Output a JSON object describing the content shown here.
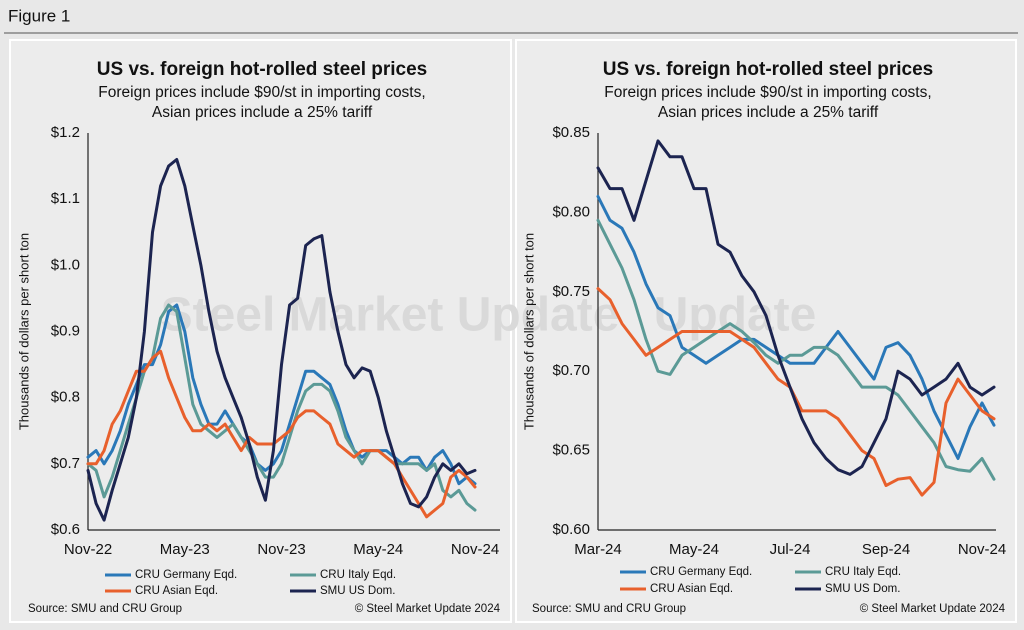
{
  "figure_label": "Figure 1",
  "chart_data": [
    {
      "type": "line",
      "title": "US vs. foreign hot-rolled steel prices",
      "subtitle": [
        "Foreign prices include $90/st in importing costs,",
        "Asian prices include a 25% tariff"
      ],
      "y_label": "Thousands of dollars per short ton",
      "watermark": "Steel Market Update",
      "categories": [
        "Nov-22",
        null,
        null,
        null,
        null,
        null,
        null,
        null,
        null,
        null,
        null,
        null,
        "May-23",
        null,
        null,
        null,
        null,
        null,
        null,
        null,
        null,
        null,
        null,
        null,
        "Nov-23",
        null,
        null,
        null,
        null,
        null,
        null,
        null,
        null,
        null,
        null,
        null,
        "May-24",
        null,
        null,
        null,
        null,
        null,
        null,
        null,
        null,
        null,
        null,
        null,
        "Nov-24"
      ],
      "ylim": [
        0.6,
        1.2
      ],
      "yticks": [
        {
          "value": 0.6,
          "label": "$0.6"
        },
        {
          "value": 0.7,
          "label": "$0.7"
        },
        {
          "value": 0.8,
          "label": "$0.8"
        },
        {
          "value": 0.9,
          "label": "$0.9"
        },
        {
          "value": 1.0,
          "label": "$1.0"
        },
        {
          "value": 1.1,
          "label": "$1.1"
        },
        {
          "value": 1.2,
          "label": "$1.2"
        }
      ],
      "series": [
        {
          "name": "CRU Germany Eqd.",
          "color": "#2a78b8",
          "values": [
            0.71,
            0.72,
            0.7,
            0.72,
            0.75,
            0.79,
            0.82,
            0.85,
            0.85,
            0.88,
            0.93,
            0.94,
            0.9,
            0.83,
            0.79,
            0.76,
            0.76,
            0.78,
            0.76,
            0.74,
            0.73,
            0.7,
            0.69,
            0.7,
            0.72,
            0.76,
            0.8,
            0.84,
            0.84,
            0.83,
            0.82,
            0.79,
            0.75,
            0.72,
            0.71,
            0.72,
            0.72,
            0.72,
            0.71,
            0.7,
            0.71,
            0.71,
            0.69,
            0.71,
            0.72,
            0.7,
            0.67,
            0.68,
            0.67
          ]
        },
        {
          "name": "CRU Italy Eqd.",
          "color": "#5b9a96",
          "values": [
            0.7,
            0.69,
            0.65,
            0.68,
            0.72,
            0.76,
            0.8,
            0.84,
            0.86,
            0.92,
            0.94,
            0.93,
            0.86,
            0.79,
            0.76,
            0.75,
            0.74,
            0.75,
            0.76,
            0.74,
            0.72,
            0.7,
            0.68,
            0.68,
            0.7,
            0.74,
            0.78,
            0.81,
            0.82,
            0.82,
            0.81,
            0.78,
            0.74,
            0.72,
            0.7,
            0.72,
            0.72,
            0.71,
            0.7,
            0.7,
            0.7,
            0.7,
            0.69,
            0.7,
            0.66,
            0.65,
            0.66,
            0.64,
            0.63
          ]
        },
        {
          "name": "CRU Asian Eqd.",
          "color": "#e8602c",
          "values": [
            0.7,
            0.7,
            0.72,
            0.76,
            0.78,
            0.81,
            0.84,
            0.84,
            0.86,
            0.87,
            0.83,
            0.8,
            0.77,
            0.75,
            0.75,
            0.76,
            0.75,
            0.76,
            0.74,
            0.72,
            0.74,
            0.73,
            0.73,
            0.73,
            0.74,
            0.75,
            0.77,
            0.78,
            0.78,
            0.77,
            0.76,
            0.73,
            0.72,
            0.71,
            0.72,
            0.72,
            0.72,
            0.71,
            0.7,
            0.68,
            0.66,
            0.64,
            0.62,
            0.63,
            0.64,
            0.68,
            0.69,
            0.68,
            0.665
          ]
        },
        {
          "name": "SMU US Dom.",
          "color": "#1c2450",
          "values": [
            0.69,
            0.64,
            0.615,
            0.66,
            0.7,
            0.74,
            0.8,
            0.9,
            1.05,
            1.12,
            1.15,
            1.16,
            1.12,
            1.06,
            1.0,
            0.93,
            0.87,
            0.83,
            0.8,
            0.77,
            0.73,
            0.68,
            0.645,
            0.72,
            0.85,
            0.94,
            0.95,
            1.03,
            1.04,
            1.045,
            0.96,
            0.9,
            0.85,
            0.83,
            0.845,
            0.84,
            0.8,
            0.75,
            0.71,
            0.67,
            0.64,
            0.635,
            0.65,
            0.68,
            0.7,
            0.69,
            0.7,
            0.685,
            0.69
          ]
        }
      ],
      "source": "Source: SMU and CRU Group",
      "copyright": "© Steel Market Update 2024"
    },
    {
      "type": "line",
      "title": "US vs. foreign hot-rolled steel prices",
      "subtitle": [
        "Foreign prices include $90/st in importing costs,",
        "Asian prices include a 25% tariff"
      ],
      "y_label": "Thousands of dollars per short ton",
      "watermark": "Update",
      "categories": [
        "Mar-24",
        null,
        null,
        null,
        null,
        null,
        null,
        null,
        "May-24",
        null,
        null,
        null,
        null,
        null,
        null,
        null,
        "Jul-24",
        null,
        null,
        null,
        null,
        null,
        null,
        null,
        "Sep-24",
        null,
        null,
        null,
        null,
        null,
        null,
        null,
        "Nov-24",
        null
      ],
      "ylim": [
        0.6,
        0.85
      ],
      "yticks": [
        {
          "value": 0.6,
          "label": "$0.60"
        },
        {
          "value": 0.65,
          "label": "$0.65"
        },
        {
          "value": 0.7,
          "label": "$0.70"
        },
        {
          "value": 0.75,
          "label": "$0.75"
        },
        {
          "value": 0.8,
          "label": "$0.80"
        },
        {
          "value": 0.85,
          "label": "$0.85"
        }
      ],
      "series": [
        {
          "name": "CRU Germany Eqd.",
          "color": "#2a78b8",
          "values": [
            0.81,
            0.795,
            0.79,
            0.775,
            0.755,
            0.74,
            0.735,
            0.715,
            0.71,
            0.705,
            0.71,
            0.715,
            0.72,
            0.72,
            0.715,
            0.71,
            0.705,
            0.705,
            0.705,
            0.715,
            0.725,
            0.715,
            0.705,
            0.695,
            0.715,
            0.718,
            0.71,
            0.695,
            0.675,
            0.66,
            0.645,
            0.665,
            0.68,
            0.666
          ]
        },
        {
          "name": "CRU Italy Eqd.",
          "color": "#5b9a96",
          "values": [
            0.795,
            0.78,
            0.765,
            0.745,
            0.72,
            0.7,
            0.698,
            0.71,
            0.715,
            0.72,
            0.725,
            0.73,
            0.725,
            0.718,
            0.71,
            0.705,
            0.71,
            0.71,
            0.715,
            0.715,
            0.71,
            0.7,
            0.69,
            0.69,
            0.69,
            0.685,
            0.675,
            0.665,
            0.655,
            0.64,
            0.638,
            0.637,
            0.645,
            0.632
          ]
        },
        {
          "name": "CRU Asian Eqd.",
          "color": "#e8602c",
          "values": [
            0.752,
            0.745,
            0.73,
            0.72,
            0.71,
            0.715,
            0.72,
            0.725,
            0.725,
            0.725,
            0.725,
            0.725,
            0.72,
            0.715,
            0.705,
            0.695,
            0.69,
            0.675,
            0.675,
            0.675,
            0.67,
            0.66,
            0.65,
            0.645,
            0.628,
            0.632,
            0.633,
            0.622,
            0.63,
            0.68,
            0.695,
            0.685,
            0.675,
            0.67
          ]
        },
        {
          "name": "SMU US Dom.",
          "color": "#1c2450",
          "values": [
            0.828,
            0.815,
            0.815,
            0.795,
            0.82,
            0.845,
            0.835,
            0.835,
            0.815,
            0.815,
            0.78,
            0.775,
            0.76,
            0.75,
            0.735,
            0.71,
            0.69,
            0.67,
            0.655,
            0.645,
            0.638,
            0.635,
            0.64,
            0.655,
            0.67,
            0.7,
            0.695,
            0.685,
            0.69,
            0.695,
            0.705,
            0.69,
            0.685,
            0.69
          ]
        }
      ],
      "source": "Source: SMU and CRU Group",
      "copyright": "© Steel Market Update 2024"
    }
  ]
}
